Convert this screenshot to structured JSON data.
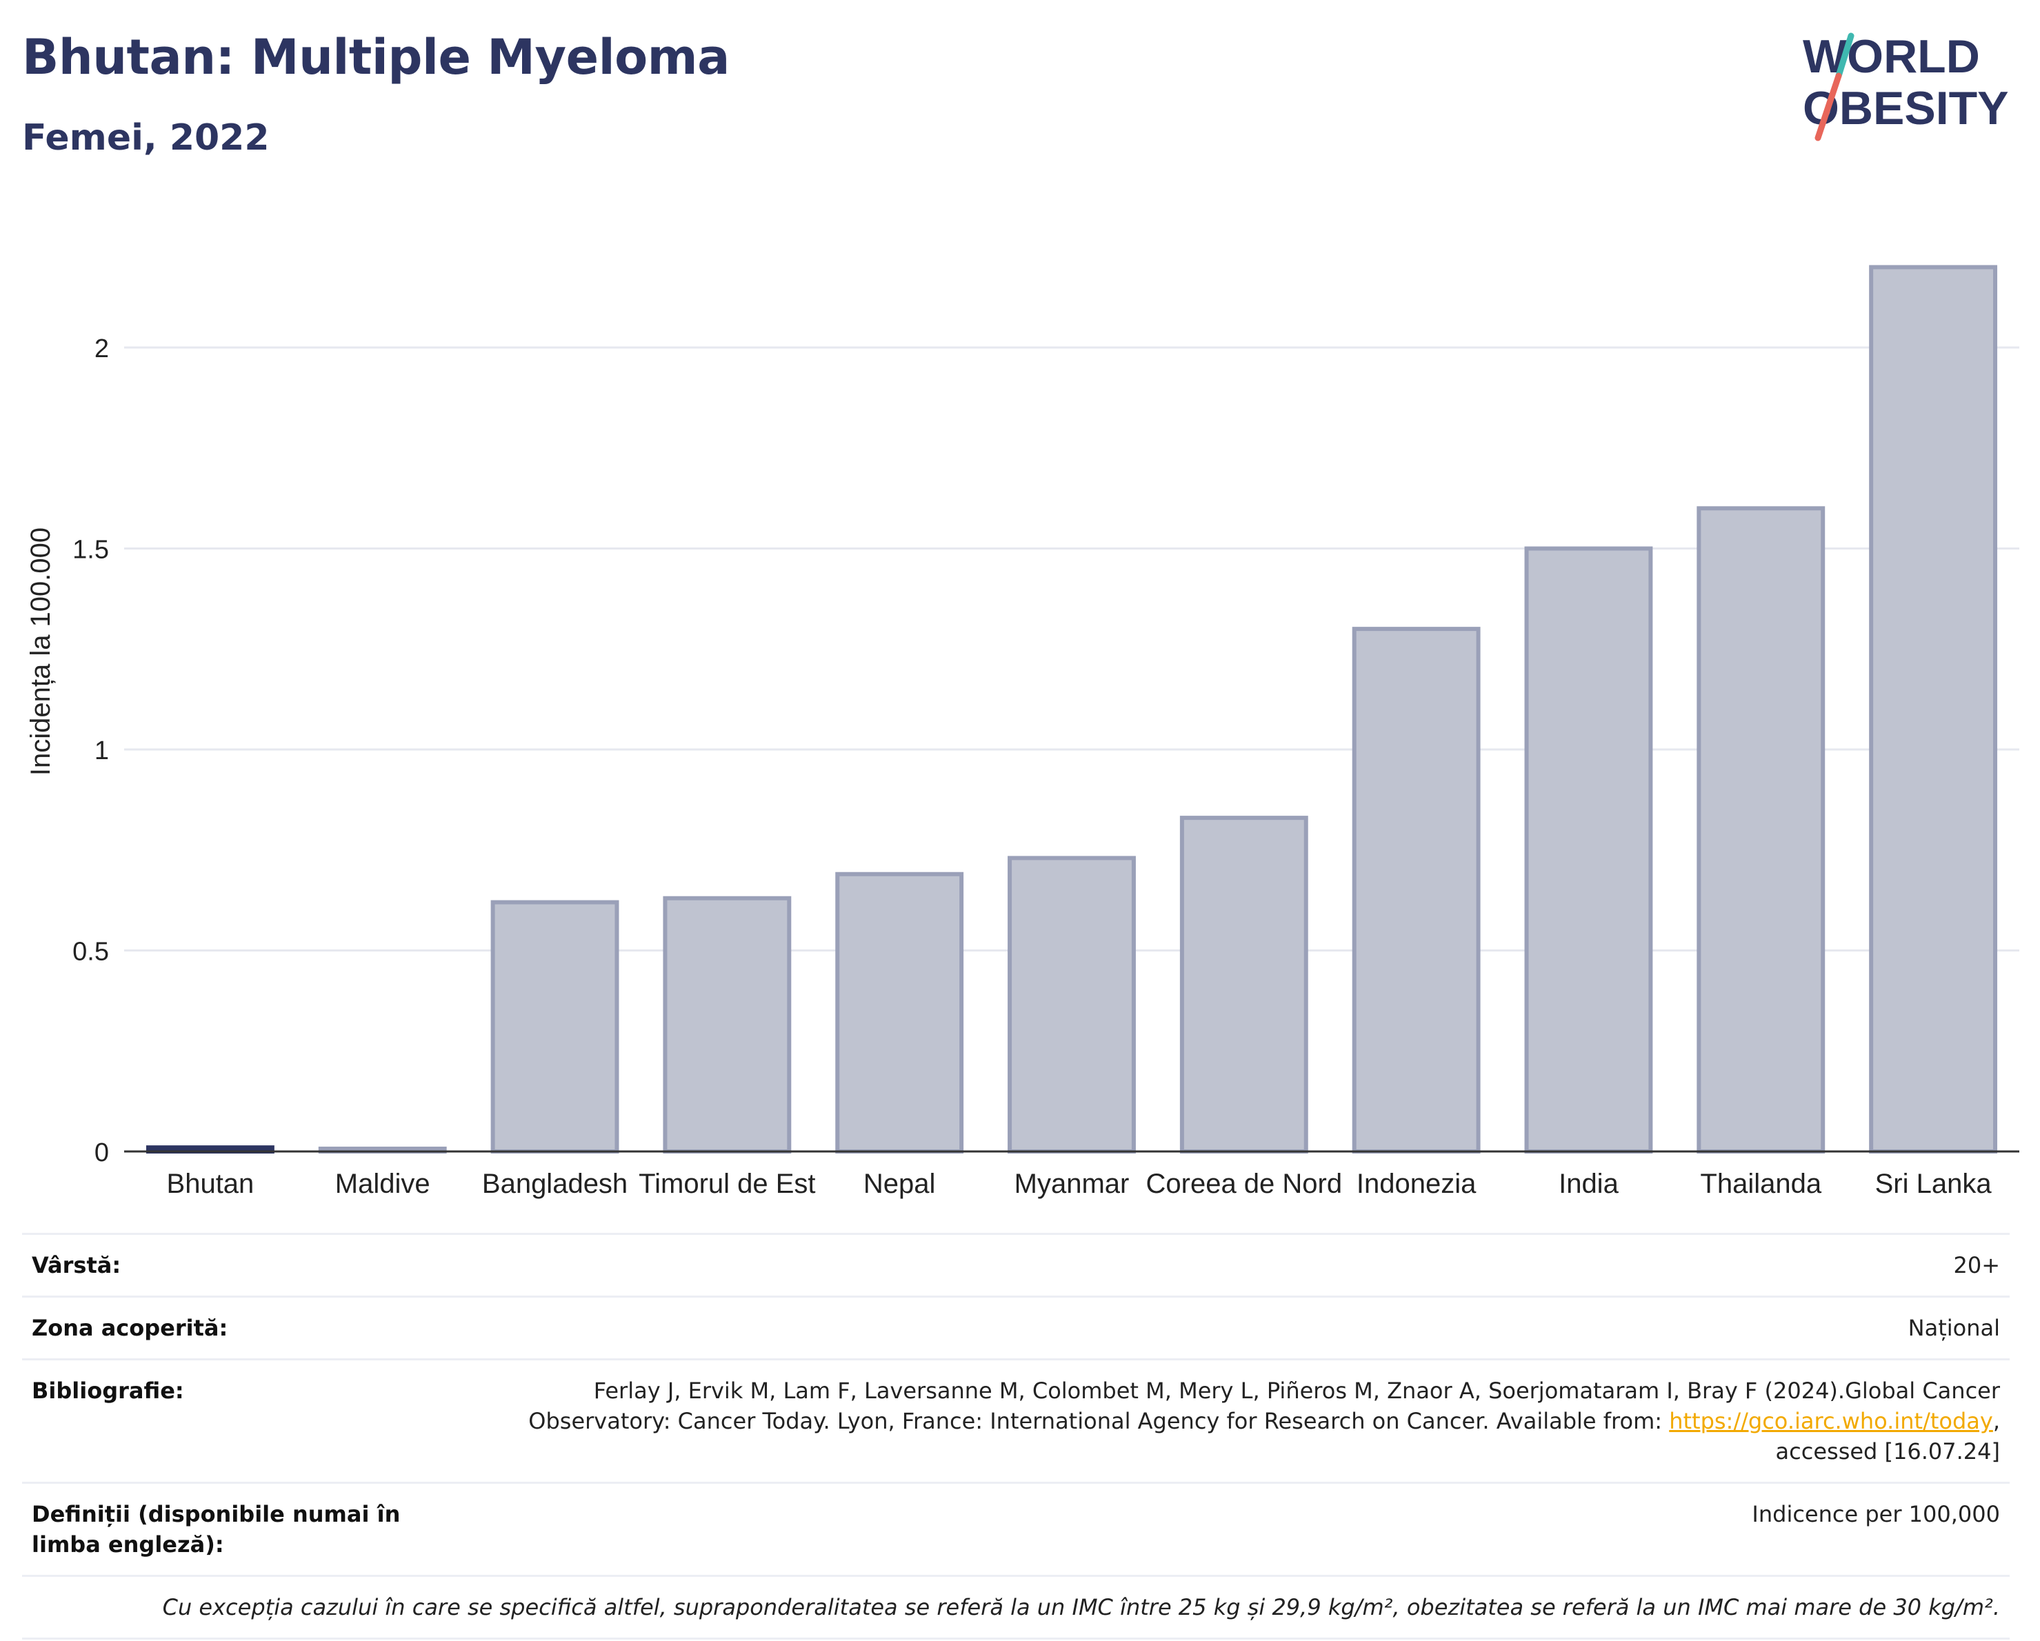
{
  "header": {
    "title": "Bhutan: Multiple Myeloma",
    "subtitle": "Femei, 2022",
    "logo_line1": "WORLD",
    "logo_line2": "OBESITY"
  },
  "colors": {
    "accent": "#2d3561",
    "bar_fill": "#bfc3d0",
    "bar_stroke": "#9aa0b8",
    "highlight": "#2d3561",
    "logo_teal": "#3fb8b0",
    "logo_red": "#e8665a"
  },
  "chart_data": {
    "type": "bar",
    "title": "Bhutan: Multiple Myeloma",
    "subtitle": "Femei, 2022",
    "ylabel": "Incidența la 100.000",
    "xlabel": "",
    "categories": [
      "Bhutan",
      "Maldive",
      "Bangladesh",
      "Timorul de Est",
      "Nepal",
      "Myanmar",
      "Coreea de Nord",
      "Indonezia",
      "India",
      "Thailanda",
      "Sri Lanka"
    ],
    "values": [
      0.01,
      0.005,
      0.62,
      0.63,
      0.69,
      0.73,
      0.83,
      1.3,
      1.5,
      1.6,
      2.2
    ],
    "highlight": "Bhutan",
    "ylim": [
      0,
      2.35
    ],
    "yticks": [
      0,
      0.5,
      1,
      1.5,
      2
    ],
    "ytick_labels": [
      "0",
      "0.5",
      "1",
      "1.5",
      "2"
    ],
    "grid": true
  },
  "info": {
    "age_label": "Vârstă:",
    "age_value": "20+",
    "area_label": "Zona acoperită:",
    "area_value": "Național",
    "bib_label": "Bibliografie:",
    "bib_text": "Ferlay J, Ervik M, Lam F, Laversanne M, Colombet M, Mery L, Piñeros M, Znaor A, Soerjomataram I, Bray F (2024).Global Cancer Observatory: Cancer Today. Lyon, France: International Agency for Research on Cancer. Available from: ",
    "bib_link": "https://gco.iarc.who.int/today",
    "bib_tail": ", accessed [16.07.24]",
    "def_label": "Definiții (disponibile numai în limba engleză):",
    "def_value": "Indicence per 100,000",
    "note": "Cu excepția cazului în care se specifică altfel, supraponderalitatea se referă la un IMC între 25 kg și 29,9 kg/m², obezitatea se referă la un IMC mai mare de 30 kg/m²."
  }
}
